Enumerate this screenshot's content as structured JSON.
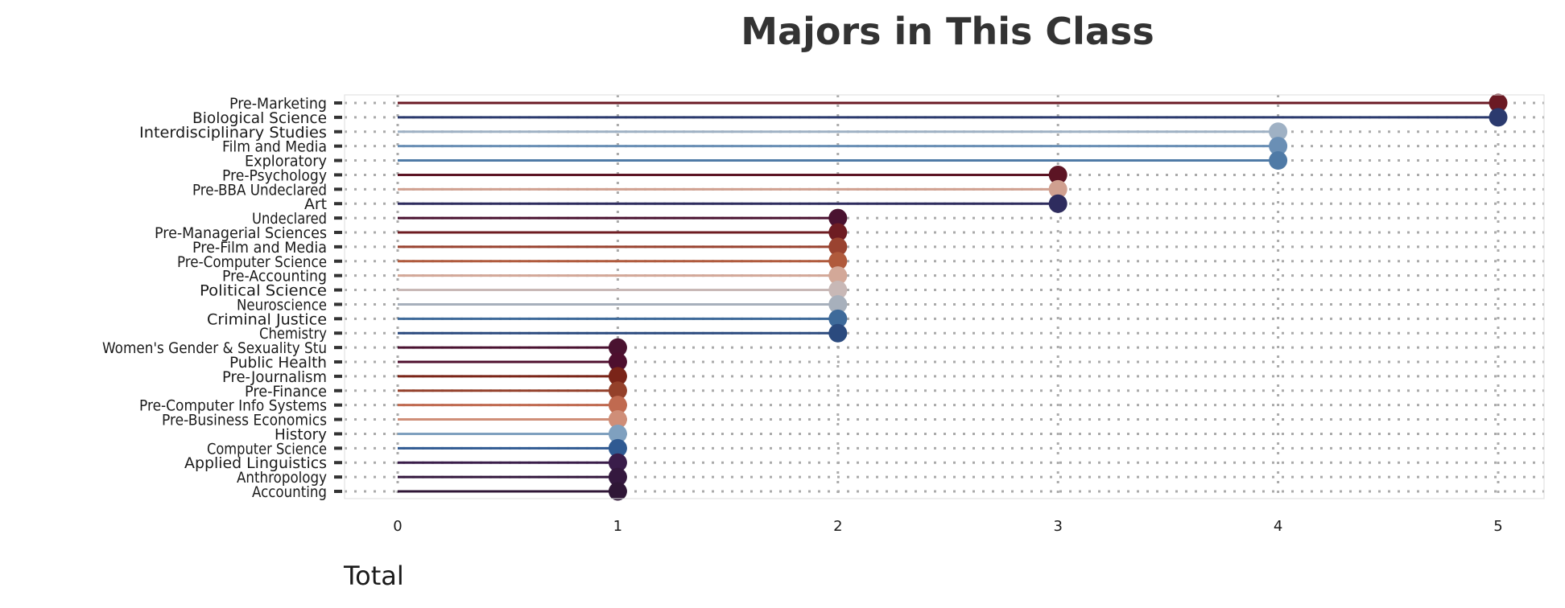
{
  "chart_data": {
    "type": "lollipop",
    "title": "Majors in This Class",
    "xlabel": "Total",
    "ylabel": "",
    "xlim": [
      0,
      5
    ],
    "xticks": [
      "0",
      "1",
      "2",
      "3",
      "4",
      "5"
    ],
    "grid": "dotted",
    "categories": [
      "Pre-Marketing",
      "Biological Science",
      "Interdisciplinary Studies",
      "Film and Media",
      "Exploratory",
      "Pre-Psychology",
      "Pre-BBA Undeclared",
      "Art",
      "Undeclared",
      "Pre-Managerial Sciences",
      "Pre-Film and Media",
      "Pre-Computer Science",
      "Pre-Accounting",
      "Political Science",
      "Neuroscience",
      "Criminal Justice",
      "Chemistry",
      "Women's Gender & Sexuality Stu",
      "Public Health",
      "Pre-Journalism",
      "Pre-Finance",
      "Pre-Computer Info Systems",
      "Pre-Business Economics",
      "History",
      "Computer Science",
      "Applied Linguistics",
      "Anthropology",
      "Accounting"
    ],
    "values": [
      5,
      5,
      4,
      4,
      4,
      3,
      3,
      3,
      2,
      2,
      2,
      2,
      2,
      2,
      2,
      2,
      2,
      1,
      1,
      1,
      1,
      1,
      1,
      1,
      1,
      1,
      1,
      1
    ],
    "colors": [
      "#6b1a24",
      "#2b3a6e",
      "#9fb1c4",
      "#6a8fb5",
      "#4f7aa6",
      "#5c1424",
      "#d0a090",
      "#2e2c5e",
      "#4a1230",
      "#6e1c22",
      "#9a4330",
      "#b05a3c",
      "#d3a898",
      "#c8b8b6",
      "#a7b0bc",
      "#3e6a9a",
      "#2b4a7e",
      "#4a1230",
      "#4e0f2e",
      "#7a2418",
      "#94402a",
      "#c06a50",
      "#cf8e78",
      "#7fa0bf",
      "#2f5a92",
      "#3a1d4a",
      "#34183e",
      "#2f1636"
    ]
  }
}
